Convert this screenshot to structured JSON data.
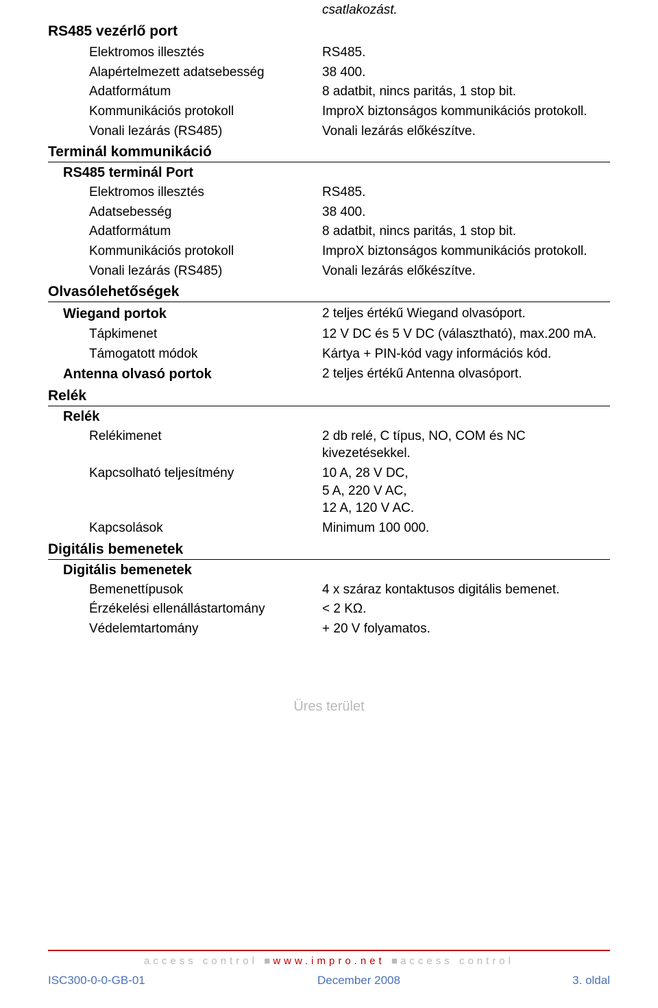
{
  "top_note": "csatlakozást.",
  "sections": {
    "rs485_control": {
      "title": "RS485 vezérlő port",
      "rows": [
        {
          "label": "Elektromos illesztés",
          "value": "RS485."
        },
        {
          "label": "Alapértelmezett adatsebesség",
          "value": "38 400."
        },
        {
          "label": "Adatformátum",
          "value": "8 adatbit, nincs paritás, 1 stop bit."
        },
        {
          "label": "Kommunikációs protokoll",
          "value": "ImproX biztonságos kommunikációs protokoll."
        },
        {
          "label": "Vonali lezárás (RS485)",
          "value": "Vonali lezárás előkészítve."
        }
      ]
    },
    "terminal_comm": {
      "title": "Terminál kommunikáció",
      "sub_title": "RS485 terminál Port",
      "rows": [
        {
          "label": "Elektromos illesztés",
          "value": "RS485."
        },
        {
          "label": "Adatsebesség",
          "value": "38 400."
        },
        {
          "label": "Adatformátum",
          "value": "8 adatbit, nincs paritás, 1 stop bit."
        },
        {
          "label": "Kommunikációs protokoll",
          "value": "ImproX biztonságos kommunikációs protokoll."
        },
        {
          "label": "Vonali lezárás (RS485)",
          "value": "Vonali lezárás előkészítve."
        }
      ]
    },
    "reader_options": {
      "title": "Olvasólehetőségek",
      "wiegand": {
        "label": "Wiegand portok",
        "value": "2 teljes értékű Wiegand olvasóport.",
        "rows": [
          {
            "label": "Tápkimenet",
            "value": "12 V DC és 5 V DC (választható), max.200 mA."
          },
          {
            "label": "Támogatott módok",
            "value": "Kártya + PIN-kód vagy információs kód."
          }
        ]
      },
      "antenna": {
        "label": "Antenna olvasó portok",
        "value": "2 teljes értékű Antenna olvasóport."
      }
    },
    "relays": {
      "title": "Relék",
      "sub_title": "Relék",
      "rows": [
        {
          "label": "Relékimenet",
          "value": "2 db relé, C típus, NO, COM és NC kivezetésekkel."
        },
        {
          "label": "Kapcsolható teljesítmény",
          "value": "10 A, 28 V DC,\n5 A, 220 V AC,\n12 A, 120 V AC."
        },
        {
          "label": "Kapcsolások",
          "value": "Minimum  100 000."
        }
      ]
    },
    "digital_inputs": {
      "title": "Digitális bemenetek",
      "sub_title": "Digitális bemenetek",
      "rows": [
        {
          "label": "Bemenettípusok",
          "value": "4 x száraz kontaktusos digitális bemenet."
        },
        {
          "label": "Érzékelési ellenállástartomány",
          "value": "< 2 KΩ."
        },
        {
          "label": "Védelemtartomány",
          "value": "+ 20 V folyamatos."
        }
      ]
    }
  },
  "blank_area": "Üres terület",
  "footer": {
    "tag1": "access control",
    "domain": "www.impro.net",
    "tag2": "access control",
    "left": "ISC300-0-0-GB-01",
    "center": "December 2008",
    "right": "3. oldal"
  }
}
